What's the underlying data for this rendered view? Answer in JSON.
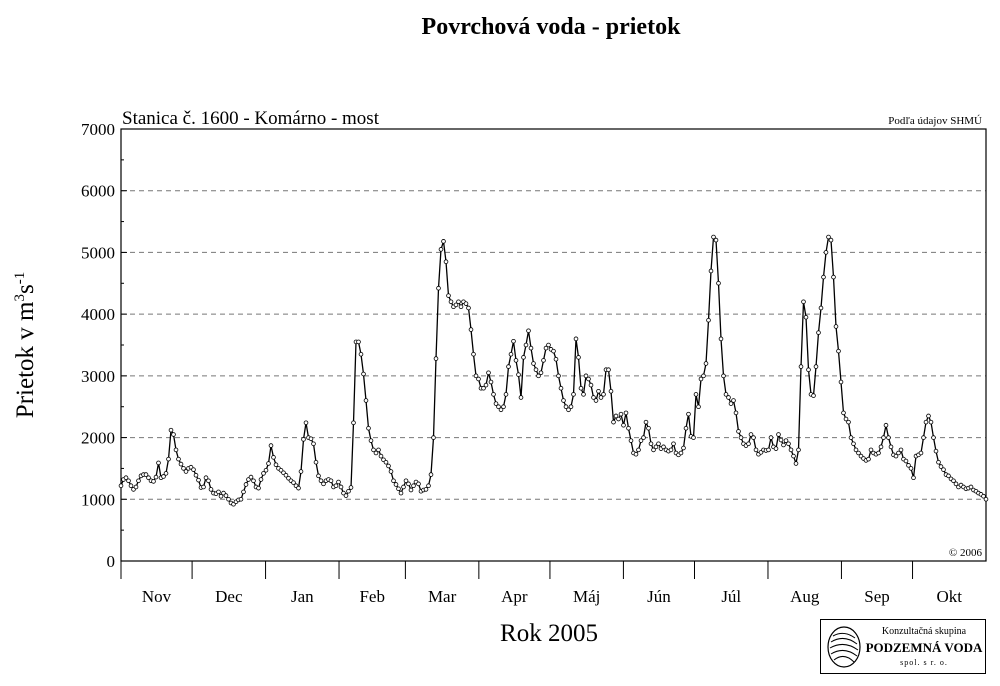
{
  "chart_data": {
    "type": "line",
    "title": "Povrchová voda - prietok",
    "subtitle": "Stanica č. 1600 - Komárno - most",
    "source_note": "Podľa údajov SHMÚ",
    "copyright": "© 2006",
    "xlabel": "Rok 2005",
    "ylabel_main": "Prietok v m",
    "ylabel_sup1": "3",
    "ylabel_mid": "s",
    "ylabel_sup2": "-1",
    "ylim": [
      0,
      7000
    ],
    "yticks": [
      "0",
      "1000",
      "2000",
      "3000",
      "4000",
      "5000",
      "6000",
      "7000"
    ],
    "grid": "horizontal dashed",
    "months": [
      "Nov",
      "Dec",
      "Jan",
      "Feb",
      "Mar",
      "Apr",
      "Máj",
      "Jún",
      "Júl",
      "Aug",
      "Sep",
      "Okt"
    ],
    "series": [
      {
        "values": [
          1220,
          1320,
          1350,
          1300,
          1220,
          1160,
          1200,
          1300,
          1380,
          1400,
          1400,
          1350,
          1300,
          1290,
          1360,
          1590,
          1350,
          1370,
          1420,
          1650,
          2120,
          2050,
          1800,
          1650,
          1570,
          1500,
          1450,
          1500,
          1520,
          1480,
          1390,
          1310,
          1190,
          1200,
          1350,
          1300,
          1160,
          1100,
          1090,
          1120,
          1050,
          1100,
          1060,
          1000,
          940,
          920,
          960,
          990,
          1000,
          1120,
          1240,
          1320,
          1360,
          1300,
          1200,
          1180,
          1320,
          1420,
          1470,
          1580,
          1870,
          1680,
          1560,
          1500,
          1470,
          1430,
          1390,
          1340,
          1300,
          1270,
          1220,
          1180,
          1450,
          1970,
          2240,
          2000,
          1980,
          1900,
          1600,
          1380,
          1300,
          1250,
          1300,
          1320,
          1300,
          1200,
          1220,
          1280,
          1200,
          1100,
          1060,
          1130,
          1190,
          2240,
          3550,
          3550,
          3350,
          3030,
          2600,
          2150,
          1950,
          1800,
          1750,
          1800,
          1700,
          1640,
          1600,
          1540,
          1450,
          1300,
          1240,
          1170,
          1100,
          1200,
          1300,
          1250,
          1150,
          1220,
          1280,
          1250,
          1130,
          1150,
          1160,
          1220,
          1400,
          2000,
          3280,
          4420,
          5050,
          5180,
          4850,
          4300,
          4200,
          4120,
          4150,
          4200,
          4120,
          4200,
          4170,
          4100,
          3750,
          3350,
          3000,
          2950,
          2800,
          2800,
          2850,
          3050,
          2900,
          2700,
          2550,
          2500,
          2450,
          2500,
          2700,
          3150,
          3350,
          3560,
          3250,
          3020,
          2650,
          3300,
          3500,
          3730,
          3450,
          3200,
          3100,
          3000,
          3050,
          3250,
          3450,
          3500,
          3430,
          3400,
          3270,
          3000,
          2800,
          2600,
          2500,
          2450,
          2500,
          2700,
          3600,
          3300,
          2800,
          2700,
          3000,
          2950,
          2850,
          2650,
          2600,
          2750,
          2650,
          2700,
          3100,
          3100,
          2750,
          2250,
          2350,
          2300,
          2380,
          2200,
          2400,
          2150,
          1950,
          1750,
          1730,
          1800,
          1950,
          2000,
          2250,
          2150,
          1900,
          1800,
          1850,
          1900,
          1820,
          1850,
          1800,
          1780,
          1800,
          1900,
          1750,
          1720,
          1750,
          1830,
          2150,
          2380,
          2020,
          2000,
          2700,
          2500,
          2950,
          3000,
          3200,
          3900,
          4700,
          5250,
          5200,
          4500,
          3600,
          3000,
          2700,
          2650,
          2550,
          2600,
          2400,
          2100,
          2000,
          1900,
          1870,
          1900,
          2050,
          2000,
          1800,
          1730,
          1760,
          1800,
          1790,
          1800,
          2000,
          1850,
          1820,
          2050,
          1960,
          1880,
          1950,
          1900,
          1800,
          1700,
          1580,
          1800,
          3150,
          4200,
          3950,
          3100,
          2700,
          2680,
          3150,
          3700,
          4100,
          4600,
          5000,
          5250,
          5200,
          4600,
          3800,
          3400,
          2900,
          2400,
          2300,
          2250,
          2000,
          1900,
          1800,
          1750,
          1700,
          1660,
          1630,
          1650,
          1800,
          1750,
          1730,
          1750,
          1850,
          2000,
          2200,
          2000,
          1850,
          1720,
          1700,
          1750,
          1800,
          1650,
          1620,
          1550,
          1500,
          1350,
          1700,
          1720,
          1750,
          2000,
          2250,
          2350,
          2250,
          2000,
          1780,
          1600,
          1530,
          1480,
          1400,
          1380,
          1330,
          1300,
          1250,
          1200,
          1230,
          1200,
          1170,
          1180,
          1200,
          1150,
          1130,
          1100,
          1080,
          1050,
          1000
        ]
      }
    ]
  },
  "logo": {
    "line1": "Konzultačná skupina",
    "line2": "PODZEMNÁ VODA",
    "line3": "spol. s r. o."
  }
}
